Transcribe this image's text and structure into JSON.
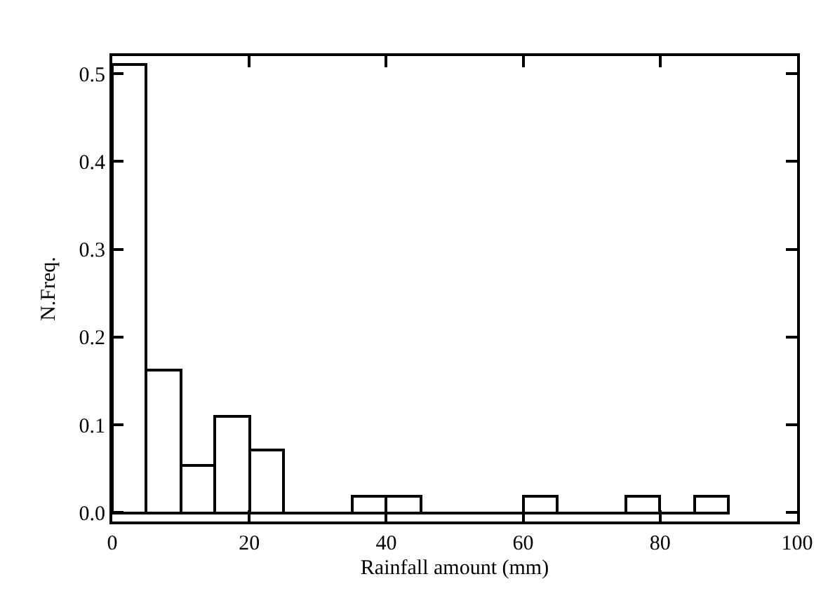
{
  "chart_data": {
    "type": "histogram",
    "xlabel": "Rainfall amount (mm)",
    "ylabel": "N.Freq.",
    "bins": [
      0,
      5,
      10,
      15,
      20,
      25,
      30,
      35,
      40,
      45,
      50,
      55,
      60,
      65,
      70,
      75,
      80,
      85,
      90
    ],
    "values": [
      0.51,
      0.163,
      0.054,
      0.109,
      0.072,
      0,
      0,
      0.018,
      0.018,
      0,
      0,
      0,
      0.018,
      0,
      0,
      0.018,
      0,
      0.018
    ],
    "color": "#000000",
    "xlim": [
      0,
      100
    ],
    "xticks": [
      0,
      20,
      40,
      60,
      80,
      100
    ],
    "ylim": [
      -0.01,
      0.52
    ],
    "yticks": [
      {
        "value": 0,
        "label": "0.0"
      },
      {
        "value": 0.1,
        "label": "0.1"
      },
      {
        "value": 0.2,
        "label": "0.2"
      },
      {
        "value": 0.3,
        "label": "0.3"
      },
      {
        "value": 0.4,
        "label": "0.4"
      },
      {
        "value": 0.5,
        "label": "0.5"
      }
    ],
    "grid": false,
    "legend": false
  }
}
